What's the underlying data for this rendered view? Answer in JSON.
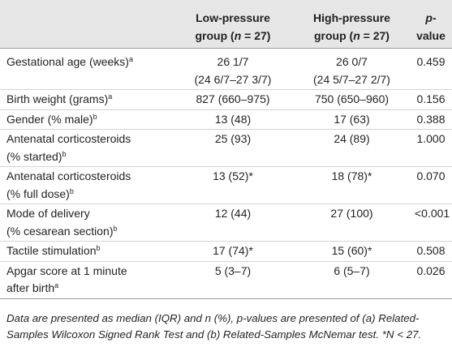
{
  "table": {
    "header": [
      [],
      [
        [
          {
            "text": "Low-pressure"
          }
        ],
        [
          {
            "text": "group ("
          },
          {
            "text": "n",
            "italic": true
          },
          {
            "text": " = 27)"
          }
        ]
      ],
      [
        [
          {
            "text": "High-pressure"
          }
        ],
        [
          {
            "text": "group ("
          },
          {
            "text": "n",
            "italic": true
          },
          {
            "text": " = 27)"
          }
        ]
      ],
      [
        [
          {
            "text": "p",
            "italic": true
          },
          {
            "text": "-value"
          }
        ]
      ]
    ],
    "rows": [
      [
        [
          [
            {
              "text": "Gestational age (weeks)"
            },
            {
              "text": "a",
              "sup": true
            }
          ]
        ],
        [
          [
            {
              "text": "26 1/7"
            }
          ],
          [
            {
              "text": "(24 6/7–27 3/7)"
            }
          ]
        ],
        [
          [
            {
              "text": "26 0/7"
            }
          ],
          [
            {
              "text": "(24 5/7–27 2/7)"
            }
          ]
        ],
        [
          [
            {
              "text": "0.459"
            }
          ]
        ]
      ],
      [
        [
          [
            {
              "text": "Birth weight (grams)"
            },
            {
              "text": "a",
              "sup": true
            }
          ]
        ],
        [
          [
            {
              "text": "827 (660–975)"
            }
          ]
        ],
        [
          [
            {
              "text": "750 (650–960)"
            }
          ]
        ],
        [
          [
            {
              "text": "0.156"
            }
          ]
        ]
      ],
      [
        [
          [
            {
              "text": "Gender (% male)"
            },
            {
              "text": "b",
              "sup": true
            }
          ]
        ],
        [
          [
            {
              "text": "13 (48)"
            }
          ]
        ],
        [
          [
            {
              "text": "17 (63)"
            }
          ]
        ],
        [
          [
            {
              "text": "0.388"
            }
          ]
        ]
      ],
      [
        [
          [
            {
              "text": "Antenatal corticosteroids"
            }
          ],
          [
            {
              "text": "(% started)"
            },
            {
              "text": "b",
              "sup": true
            }
          ]
        ],
        [
          [
            {
              "text": "25 (93)"
            }
          ]
        ],
        [
          [
            {
              "text": "24 (89)"
            }
          ]
        ],
        [
          [
            {
              "text": "1.000"
            }
          ]
        ]
      ],
      [
        [
          [
            {
              "text": "Antenatal corticosteroids"
            }
          ],
          [
            {
              "text": "(% full dose)"
            },
            {
              "text": "b",
              "sup": true
            }
          ]
        ],
        [
          [
            {
              "text": "13 (52)*"
            }
          ]
        ],
        [
          [
            {
              "text": "18 (78)*"
            }
          ]
        ],
        [
          [
            {
              "text": "0.070"
            }
          ]
        ]
      ],
      [
        [
          [
            {
              "text": "Mode of delivery"
            }
          ],
          [
            {
              "text": "(% cesarean section)"
            },
            {
              "text": "b",
              "sup": true
            }
          ]
        ],
        [
          [
            {
              "text": "12 (44)"
            }
          ]
        ],
        [
          [
            {
              "text": "27 (100)"
            }
          ]
        ],
        [
          [
            {
              "text": "<0.001"
            }
          ]
        ]
      ],
      [
        [
          [
            {
              "text": "Tactile stimulation"
            },
            {
              "text": "b",
              "sup": true
            }
          ]
        ],
        [
          [
            {
              "text": "17 (74)*"
            }
          ]
        ],
        [
          [
            {
              "text": "15 (60)*"
            }
          ]
        ],
        [
          [
            {
              "text": "0.508"
            }
          ]
        ]
      ],
      [
        [
          [
            {
              "text": "Apgar score at 1 minute"
            }
          ],
          [
            {
              "text": "after birth"
            },
            {
              "text": "a",
              "sup": true
            }
          ]
        ],
        [
          [
            {
              "text": "5 (3–7)"
            }
          ]
        ],
        [
          [
            {
              "text": "6 (5–7)"
            }
          ]
        ],
        [
          [
            {
              "text": "0.026"
            }
          ]
        ]
      ]
    ],
    "footnote": "Data are presented as median (IQR) and n (%), p-values are presented of (a) Related-Samples Wilcoxon Signed Rank Test and (b) Related-Samples McNemar test. *N < 27."
  }
}
